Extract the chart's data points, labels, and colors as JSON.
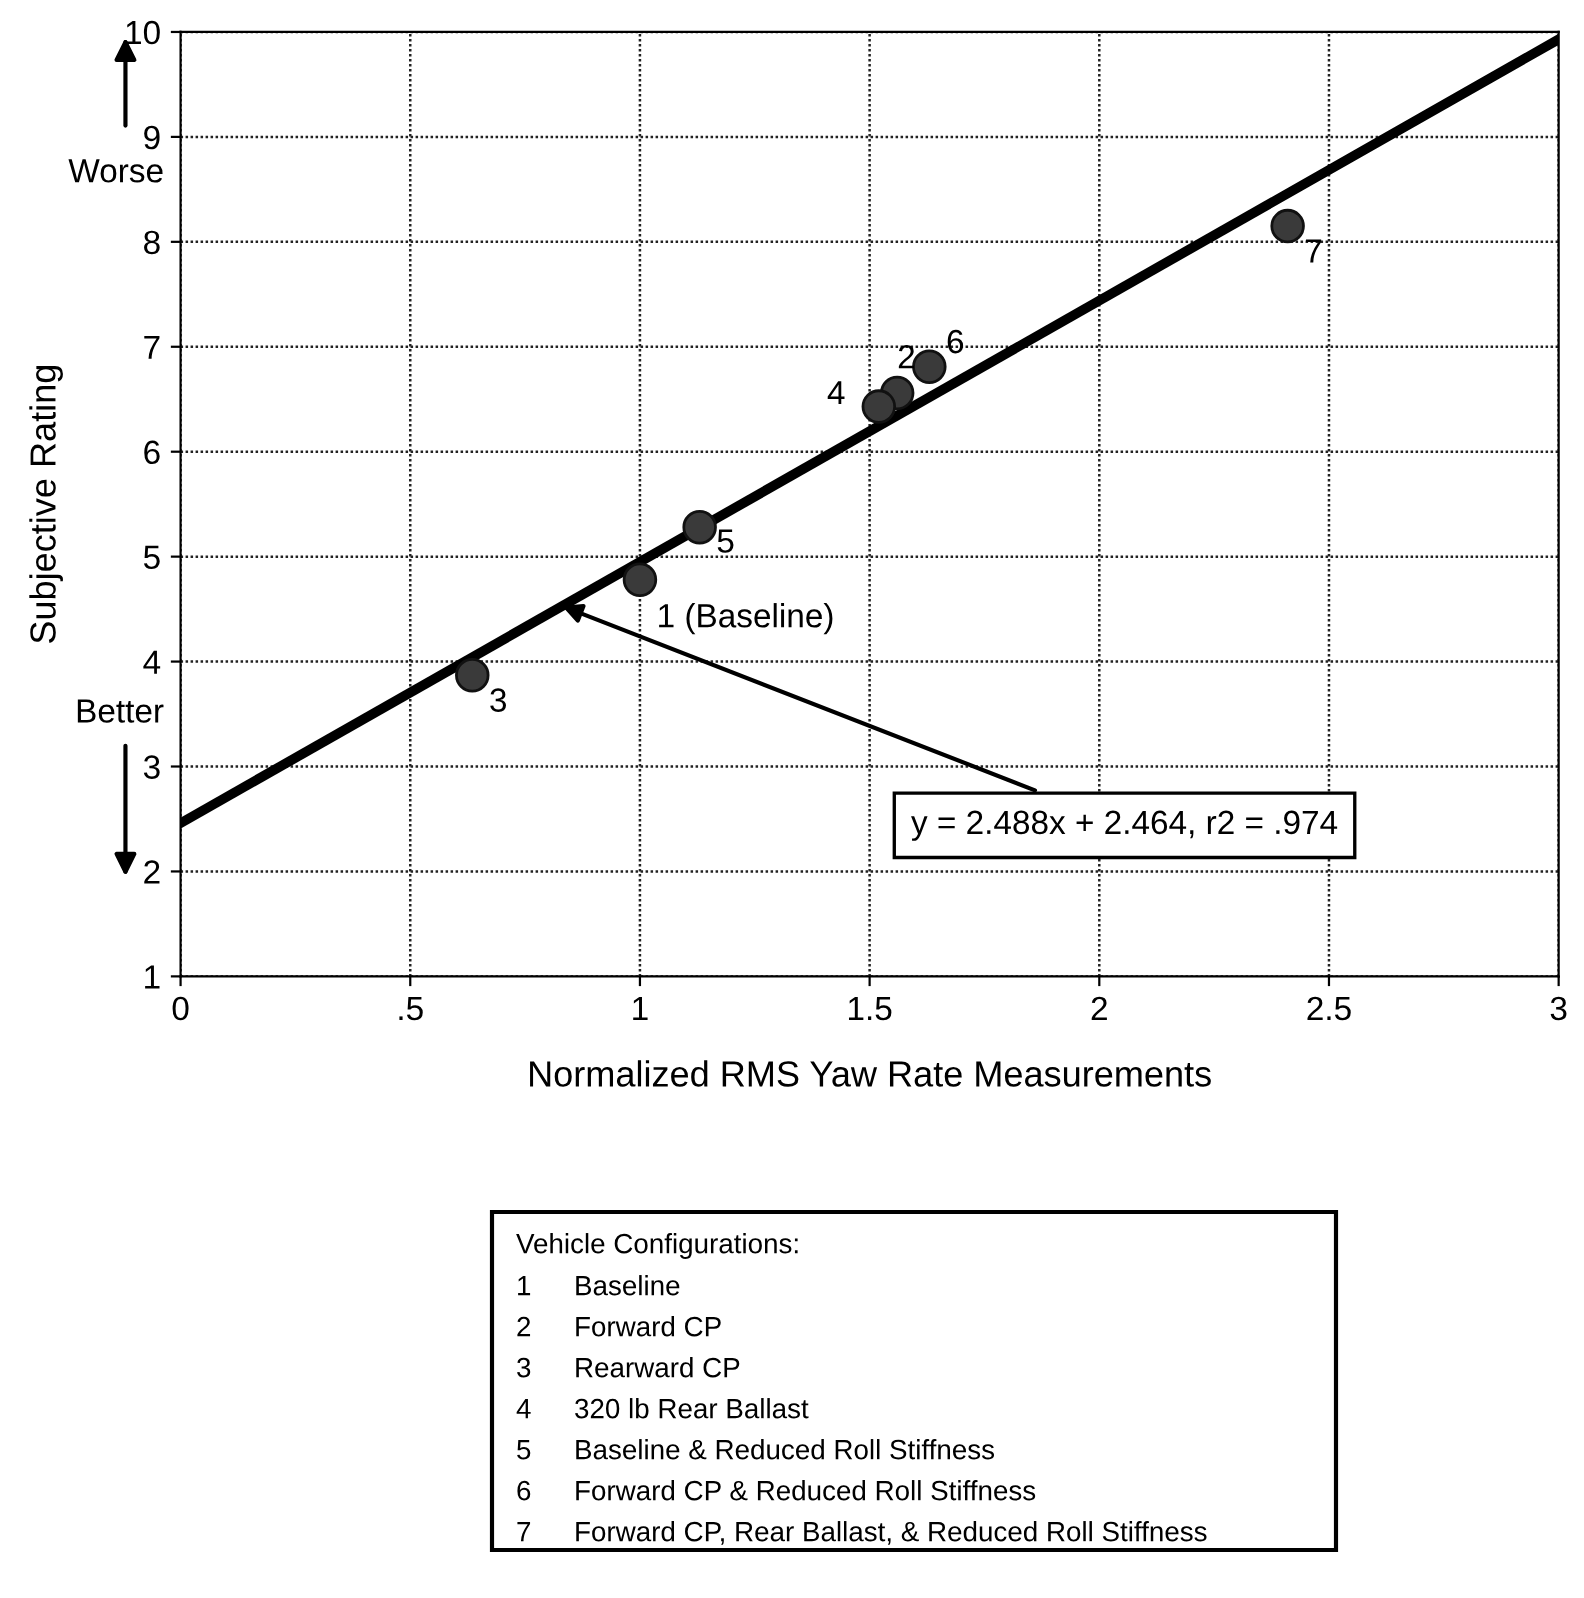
{
  "chart_data": {
    "type": "scatter",
    "xlabel": "Normalized RMS Yaw Rate Measurements",
    "ylabel": "Subjective Rating",
    "xlim": [
      0,
      3
    ],
    "ylim": [
      1,
      10
    ],
    "xticks": [
      0,
      {
        "value": 0.5,
        "label": ".5"
      },
      1,
      {
        "value": 1.5,
        "label": "1.5"
      },
      2,
      {
        "value": 2.5,
        "label": "2.5"
      },
      3
    ],
    "yticks": [
      1,
      2,
      3,
      4,
      5,
      6,
      7,
      8,
      9,
      10
    ],
    "grid": true,
    "series": [
      {
        "color": "#3a3a3a",
        "marker": "circle",
        "x": [
          1.0,
          1.56,
          0.635,
          1.52,
          1.13,
          1.63,
          2.41
        ],
        "values": [
          4.78,
          6.56,
          3.87,
          6.43,
          5.28,
          6.81,
          8.15
        ]
      },
      {
        "type": "line",
        "color": "#000000",
        "marker": "none",
        "x": [
          0,
          3
        ],
        "values": [
          2.46,
          9.93
        ]
      }
    ],
    "annotations": [
      "Worse",
      "Better",
      {
        "text": "y = 2.488x + 2.464, r2 = .974",
        "x": 0.83,
        "y": 4.53
      },
      "Vehicle Configurations:",
      "1 Baseline",
      "2 Forward CP",
      "3 Rearward CP",
      "4 320 lb Rear Ballast",
      "5 Baseline & Reduced Roll Stiffness",
      "6 Forward CP & Reduced Roll Stiffness",
      "7 Forward CP, Rear Ballast, & Reduced Roll Stiffness",
      {
        "text": "1 (Baseline)",
        "x": 1.0,
        "y": 4.78
      },
      {
        "text": "2",
        "x": 1.56,
        "y": 6.56
      },
      {
        "text": "3",
        "x": 0.635,
        "y": 3.87
      },
      {
        "text": "4",
        "x": 1.52,
        "y": 6.43
      },
      {
        "text": "5",
        "x": 1.13,
        "y": 5.28
      },
      {
        "text": "6",
        "x": 1.63,
        "y": 6.81
      },
      {
        "text": "7",
        "x": 2.41,
        "y": 8.15
      }
    ]
  }
}
